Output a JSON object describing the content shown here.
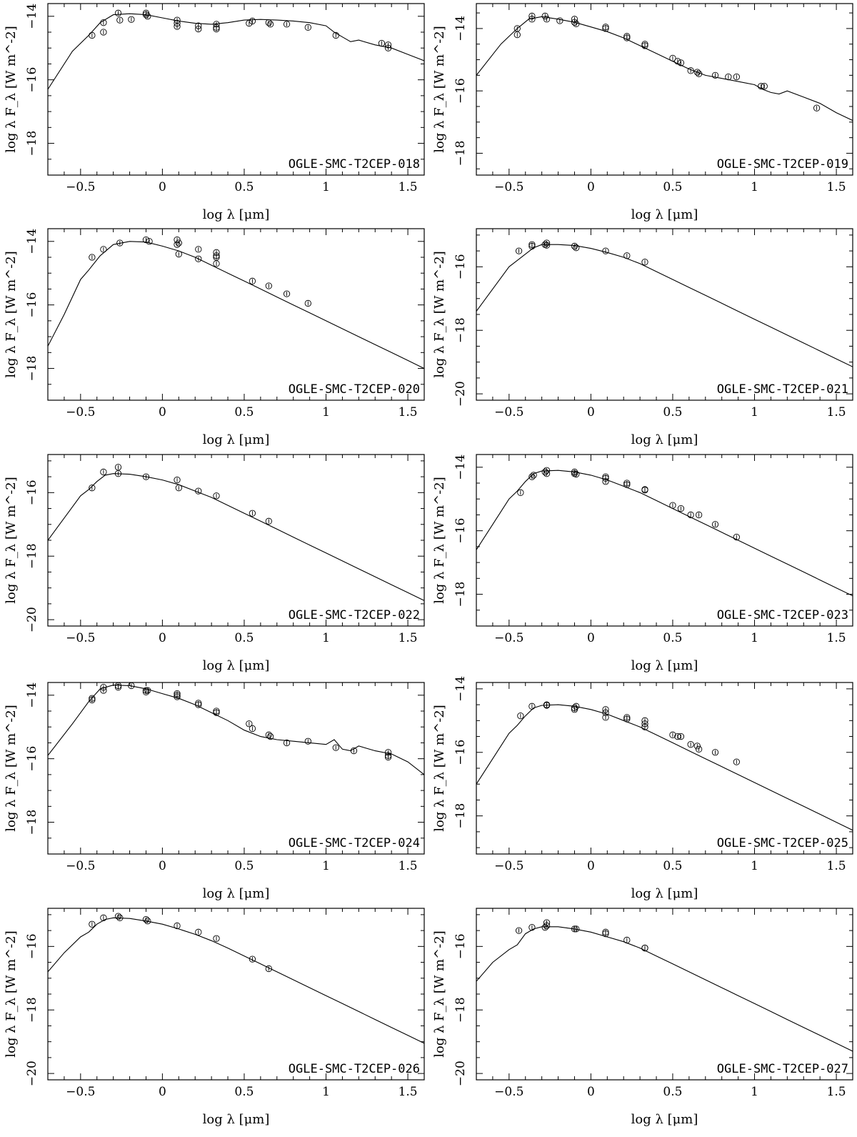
{
  "figure": {
    "x_axis_title": "log λ [μm]",
    "y_axis_title": "log λ F_λ [W m^-2]"
  },
  "chart_data": [
    {
      "type": "scatter",
      "label": "OGLE-SMC-T2CEP-018",
      "xlim": [
        -0.7,
        1.6
      ],
      "ylim": [
        -19,
        -13.6
      ],
      "xticks": [
        -0.5,
        0,
        0.5,
        1,
        1.5
      ],
      "yticks": [
        -14,
        -16,
        -18
      ],
      "model": {
        "x": [
          -0.7,
          -0.55,
          -0.45,
          -0.38,
          -0.3,
          -0.2,
          -0.1,
          0,
          0.1,
          0.2,
          0.3,
          0.4,
          0.5,
          0.6,
          0.7,
          0.8,
          0.9,
          1,
          1.05,
          1.1,
          1.15,
          1.2,
          1.3,
          1.4,
          1.5,
          1.6
        ],
        "y": [
          -16.3,
          -15.1,
          -14.6,
          -14.2,
          -13.95,
          -13.92,
          -13.95,
          -14.05,
          -14.15,
          -14.22,
          -14.25,
          -14.2,
          -14.12,
          -14.1,
          -14.12,
          -14.15,
          -14.2,
          -14.3,
          -14.5,
          -14.65,
          -14.8,
          -14.75,
          -14.9,
          -15,
          -15.2,
          -15.4
        ]
      },
      "points": {
        "x": [
          -0.43,
          -0.36,
          -0.36,
          -0.27,
          -0.26,
          -0.19,
          -0.1,
          -0.1,
          -0.09,
          0.09,
          0.09,
          0.09,
          0.22,
          0.22,
          0.33,
          0.33,
          0.33,
          0.53,
          0.55,
          0.65,
          0.66,
          0.76,
          0.89,
          1.06,
          1.34,
          1.38,
          1.38
        ],
        "y": [
          -14.6,
          -14.5,
          -14.2,
          -13.9,
          -14.12,
          -14.1,
          -13.95,
          -13.9,
          -14.0,
          -14.12,
          -14.22,
          -14.32,
          -14.3,
          -14.4,
          -14.25,
          -14.35,
          -14.4,
          -14.22,
          -14.15,
          -14.2,
          -14.25,
          -14.25,
          -14.35,
          -14.6,
          -14.85,
          -14.9,
          -15.0
        ]
      }
    },
    {
      "type": "scatter",
      "label": "OGLE-SMC-T2CEP-019",
      "xlim": [
        -0.7,
        1.6
      ],
      "ylim": [
        -18.7,
        -13.2
      ],
      "xticks": [
        -0.5,
        0,
        0.5,
        1,
        1.5
      ],
      "yticks": [
        -14,
        -16,
        -18
      ],
      "model": {
        "x": [
          -0.7,
          -0.55,
          -0.45,
          -0.38,
          -0.3,
          -0.2,
          -0.1,
          0,
          0.1,
          0.2,
          0.3,
          0.4,
          0.5,
          0.6,
          0.7,
          0.8,
          0.9,
          1,
          1.05,
          1.1,
          1.15,
          1.2,
          1.3,
          1.4,
          1.5,
          1.6
        ],
        "y": [
          -15.5,
          -14.5,
          -14.0,
          -13.7,
          -13.62,
          -13.7,
          -13.8,
          -13.95,
          -14.1,
          -14.3,
          -14.55,
          -14.8,
          -15.05,
          -15.3,
          -15.5,
          -15.6,
          -15.7,
          -15.8,
          -15.95,
          -16.05,
          -16.1,
          -16.0,
          -16.2,
          -16.4,
          -16.7,
          -16.95
        ]
      },
      "points": {
        "x": [
          -0.45,
          -0.45,
          -0.36,
          -0.36,
          -0.28,
          -0.27,
          -0.19,
          -0.1,
          -0.1,
          -0.09,
          0.09,
          0.09,
          0.22,
          0.22,
          0.33,
          0.33,
          0.5,
          0.53,
          0.55,
          0.61,
          0.65,
          0.66,
          0.76,
          0.84,
          0.89,
          1.04,
          1.06,
          1.38
        ],
        "y": [
          -14.0,
          -14.2,
          -13.6,
          -13.7,
          -13.6,
          -13.7,
          -13.75,
          -13.7,
          -13.8,
          -13.85,
          -13.95,
          -14.0,
          -14.25,
          -14.3,
          -14.5,
          -14.55,
          -14.95,
          -15.05,
          -15.1,
          -15.35,
          -15.4,
          -15.45,
          -15.5,
          -15.55,
          -15.55,
          -15.85,
          -15.85,
          -16.55
        ]
      }
    },
    {
      "type": "scatter",
      "label": "OGLE-SMC-T2CEP-020",
      "xlim": [
        -0.7,
        1.6
      ],
      "ylim": [
        -19,
        -13.6
      ],
      "xticks": [
        -0.5,
        0,
        0.5,
        1,
        1.5
      ],
      "yticks": [
        -14,
        -16,
        -18
      ],
      "model": {
        "x": [
          -0.7,
          -0.6,
          -0.5,
          -0.45,
          -0.38,
          -0.3,
          -0.2,
          -0.1,
          0,
          0.1,
          0.2,
          0.3,
          0.4,
          0.5,
          0.6,
          0.7,
          0.8,
          0.9,
          1,
          1.1,
          1.2,
          1.3,
          1.4,
          1.5,
          1.6
        ],
        "y": [
          -17.3,
          -16.3,
          -15.2,
          -14.9,
          -14.45,
          -14.1,
          -14.0,
          -14.02,
          -14.15,
          -14.3,
          -14.5,
          -14.75,
          -15.0,
          -15.25,
          -15.5,
          -15.75,
          -16.0,
          -16.25,
          -16.5,
          -16.75,
          -17.0,
          -17.25,
          -17.5,
          -17.75,
          -18.0
        ]
      },
      "points": {
        "x": [
          -0.43,
          -0.36,
          -0.26,
          -0.1,
          -0.08,
          0.09,
          0.09,
          0.1,
          0.1,
          0.22,
          0.22,
          0.33,
          0.33,
          0.33,
          0.33,
          0.55,
          0.65,
          0.76,
          0.89
        ],
        "y": [
          -14.5,
          -14.25,
          -14.05,
          -13.95,
          -14.0,
          -13.95,
          -14.1,
          -14.4,
          -14.05,
          -14.25,
          -14.55,
          -14.35,
          -14.45,
          -14.7,
          -14.5,
          -15.25,
          -15.4,
          -15.65,
          -15.95
        ]
      }
    },
    {
      "type": "scatter",
      "label": "OGLE-SMC-T2CEP-021",
      "xlim": [
        -0.7,
        1.6
      ],
      "ylim": [
        -20.2,
        -14.8
      ],
      "xticks": [
        -0.5,
        0,
        0.5,
        1,
        1.5
      ],
      "yticks": [
        -16,
        -18,
        -20
      ],
      "model": {
        "x": [
          -0.7,
          -0.6,
          -0.5,
          -0.45,
          -0.4,
          -0.35,
          -0.3,
          -0.2,
          -0.1,
          0,
          0.1,
          0.2,
          0.3,
          0.4,
          0.5,
          0.6,
          0.7,
          0.8,
          0.9,
          1,
          1.1,
          1.2,
          1.3,
          1.4,
          1.5,
          1.6
        ],
        "y": [
          -17.4,
          -16.7,
          -16.0,
          -15.8,
          -15.6,
          -15.4,
          -15.3,
          -15.3,
          -15.33,
          -15.42,
          -15.55,
          -15.7,
          -15.9,
          -16.15,
          -16.4,
          -16.65,
          -16.9,
          -17.15,
          -17.4,
          -17.65,
          -17.9,
          -18.15,
          -18.4,
          -18.65,
          -18.9,
          -19.15
        ]
      },
      "points": {
        "x": [
          -0.44,
          -0.36,
          -0.36,
          -0.28,
          -0.27,
          -0.27,
          -0.1,
          -0.09,
          0.09,
          0.22,
          0.33
        ],
        "y": [
          -15.5,
          -15.3,
          -15.35,
          -15.3,
          -15.25,
          -15.32,
          -15.35,
          -15.4,
          -15.5,
          -15.65,
          -15.85
        ]
      }
    },
    {
      "type": "scatter",
      "label": "OGLE-SMC-T2CEP-022",
      "xlim": [
        -0.7,
        1.6
      ],
      "ylim": [
        -20.2,
        -14.8
      ],
      "xticks": [
        -0.5,
        0,
        0.5,
        1,
        1.5
      ],
      "yticks": [
        -16,
        -18,
        -20
      ],
      "model": {
        "x": [
          -0.7,
          -0.6,
          -0.5,
          -0.45,
          -0.4,
          -0.35,
          -0.3,
          -0.2,
          -0.1,
          0,
          0.1,
          0.2,
          0.3,
          0.4,
          0.5,
          0.6,
          0.7,
          0.8,
          0.9,
          1,
          1.1,
          1.2,
          1.3,
          1.4,
          1.5,
          1.6
        ],
        "y": [
          -17.5,
          -16.8,
          -16.1,
          -15.9,
          -15.65,
          -15.45,
          -15.4,
          -15.42,
          -15.5,
          -15.6,
          -15.75,
          -15.95,
          -16.15,
          -16.4,
          -16.65,
          -16.9,
          -17.15,
          -17.4,
          -17.65,
          -17.9,
          -18.15,
          -18.4,
          -18.65,
          -18.9,
          -19.15,
          -19.4
        ]
      },
      "points": {
        "x": [
          -0.43,
          -0.36,
          -0.27,
          -0.27,
          -0.1,
          0.09,
          0.1,
          0.22,
          0.33,
          0.55,
          0.65
        ],
        "y": [
          -15.85,
          -15.35,
          -15.2,
          -15.4,
          -15.5,
          -15.6,
          -15.85,
          -15.95,
          -16.1,
          -16.65,
          -16.9
        ]
      }
    },
    {
      "type": "scatter",
      "label": "OGLE-SMC-T2CEP-023",
      "xlim": [
        -0.7,
        1.6
      ],
      "ylim": [
        -19,
        -13.6
      ],
      "xticks": [
        -0.5,
        0,
        0.5,
        1,
        1.5
      ],
      "yticks": [
        -14,
        -16,
        -18
      ],
      "model": {
        "x": [
          -0.7,
          -0.6,
          -0.5,
          -0.45,
          -0.4,
          -0.35,
          -0.3,
          -0.2,
          -0.1,
          0,
          0.1,
          0.2,
          0.3,
          0.4,
          0.5,
          0.6,
          0.7,
          0.8,
          0.9,
          1,
          1.1,
          1.2,
          1.3,
          1.4,
          1.5,
          1.6
        ],
        "y": [
          -16.6,
          -15.8,
          -15.0,
          -14.75,
          -14.45,
          -14.2,
          -14.12,
          -14.1,
          -14.15,
          -14.25,
          -14.4,
          -14.6,
          -14.8,
          -15.05,
          -15.3,
          -15.55,
          -15.8,
          -16.05,
          -16.3,
          -16.55,
          -16.8,
          -17.05,
          -17.3,
          -17.55,
          -17.8,
          -18.05
        ]
      },
      "points": {
        "x": [
          -0.43,
          -0.36,
          -0.35,
          -0.28,
          -0.27,
          -0.27,
          -0.1,
          -0.1,
          -0.09,
          0.09,
          0.09,
          0.09,
          0.22,
          0.22,
          0.33,
          0.33,
          0.5,
          0.55,
          0.61,
          0.66,
          0.76,
          0.89
        ],
        "y": [
          -14.8,
          -14.3,
          -14.25,
          -14.15,
          -14.2,
          -14.1,
          -14.2,
          -14.15,
          -14.22,
          -14.3,
          -14.35,
          -14.45,
          -14.5,
          -14.55,
          -14.7,
          -14.72,
          -15.2,
          -15.3,
          -15.5,
          -15.5,
          -15.8,
          -16.2
        ]
      }
    },
    {
      "type": "scatter",
      "label": "OGLE-SMC-T2CEP-024",
      "xlim": [
        -0.7,
        1.6
      ],
      "ylim": [
        -19,
        -13.6
      ],
      "xticks": [
        -0.5,
        0,
        0.5,
        1,
        1.5
      ],
      "yticks": [
        -14,
        -16,
        -18
      ],
      "model": {
        "x": [
          -0.7,
          -0.55,
          -0.45,
          -0.38,
          -0.3,
          -0.2,
          -0.1,
          0,
          0.1,
          0.2,
          0.3,
          0.4,
          0.5,
          0.6,
          0.7,
          0.8,
          0.9,
          1,
          1.05,
          1.1,
          1.15,
          1.2,
          1.3,
          1.4,
          1.5,
          1.6
        ],
        "y": [
          -15.9,
          -14.9,
          -14.2,
          -13.8,
          -13.68,
          -13.7,
          -13.8,
          -13.95,
          -14.1,
          -14.3,
          -14.55,
          -14.8,
          -15.1,
          -15.3,
          -15.4,
          -15.45,
          -15.5,
          -15.55,
          -15.4,
          -15.7,
          -15.75,
          -15.6,
          -15.75,
          -15.85,
          -16.1,
          -16.5
        ]
      },
      "points": {
        "x": [
          -0.43,
          -0.43,
          -0.36,
          -0.36,
          -0.27,
          -0.27,
          -0.19,
          -0.1,
          -0.1,
          -0.09,
          0.09,
          0.09,
          0.09,
          0.22,
          0.22,
          0.33,
          0.33,
          0.53,
          0.55,
          0.65,
          0.66,
          0.76,
          0.89,
          1.06,
          1.17,
          1.38,
          1.38,
          1.38
        ],
        "y": [
          -14.1,
          -14.15,
          -13.75,
          -13.85,
          -13.7,
          -13.75,
          -13.7,
          -13.85,
          -13.9,
          -13.85,
          -13.95,
          -14.05,
          -14.0,
          -14.25,
          -14.3,
          -14.5,
          -14.55,
          -14.9,
          -15.05,
          -15.25,
          -15.3,
          -15.5,
          -15.45,
          -15.65,
          -15.75,
          -15.8,
          -15.9,
          -15.95
        ]
      }
    },
    {
      "type": "scatter",
      "label": "OGLE-SMC-T2CEP-025",
      "xlim": [
        -0.7,
        1.6
      ],
      "ylim": [
        -19.2,
        -13.8
      ],
      "xticks": [
        -0.5,
        0,
        0.5,
        1,
        1.5
      ],
      "yticks": [
        -14,
        -16,
        -18
      ],
      "model": {
        "x": [
          -0.7,
          -0.6,
          -0.5,
          -0.45,
          -0.4,
          -0.35,
          -0.3,
          -0.2,
          -0.1,
          0,
          0.1,
          0.2,
          0.3,
          0.4,
          0.5,
          0.6,
          0.7,
          0.8,
          0.9,
          1,
          1.1,
          1.2,
          1.3,
          1.4,
          1.5,
          1.6
        ],
        "y": [
          -17.0,
          -16.2,
          -15.4,
          -15.15,
          -14.85,
          -14.6,
          -14.52,
          -14.5,
          -14.55,
          -14.65,
          -14.8,
          -15.0,
          -15.2,
          -15.45,
          -15.7,
          -15.95,
          -16.2,
          -16.45,
          -16.7,
          -16.95,
          -17.2,
          -17.45,
          -17.7,
          -17.95,
          -18.2,
          -18.45
        ]
      },
      "points": {
        "x": [
          -0.43,
          -0.36,
          -0.27,
          -0.27,
          -0.1,
          -0.1,
          -0.09,
          0.09,
          0.09,
          0.09,
          0.22,
          0.22,
          0.33,
          0.33,
          0.33,
          0.5,
          0.53,
          0.55,
          0.61,
          0.65,
          0.66,
          0.76,
          0.89
        ],
        "y": [
          -14.85,
          -14.55,
          -14.5,
          -14.52,
          -14.6,
          -14.65,
          -14.55,
          -14.65,
          -14.75,
          -14.9,
          -14.9,
          -14.95,
          -15.0,
          -15.1,
          -15.2,
          -15.45,
          -15.5,
          -15.5,
          -15.75,
          -15.8,
          -15.9,
          -16.0,
          -16.3
        ]
      }
    },
    {
      "type": "scatter",
      "label": "OGLE-SMC-T2CEP-026",
      "xlim": [
        -0.7,
        1.6
      ],
      "ylim": [
        -20.2,
        -14.8
      ],
      "xticks": [
        -0.5,
        0,
        0.5,
        1,
        1.5
      ],
      "yticks": [
        -16,
        -18,
        -20
      ],
      "model": {
        "x": [
          -0.7,
          -0.6,
          -0.5,
          -0.45,
          -0.4,
          -0.35,
          -0.3,
          -0.2,
          -0.1,
          0,
          0.1,
          0.2,
          0.3,
          0.4,
          0.5,
          0.6,
          0.7,
          0.8,
          0.9,
          1,
          1.1,
          1.2,
          1.3,
          1.4,
          1.5,
          1.6
        ],
        "y": [
          -16.8,
          -16.2,
          -15.7,
          -15.55,
          -15.3,
          -15.15,
          -15.1,
          -15.12,
          -15.2,
          -15.3,
          -15.45,
          -15.62,
          -15.82,
          -16.05,
          -16.3,
          -16.55,
          -16.8,
          -17.05,
          -17.3,
          -17.55,
          -17.8,
          -18.05,
          -18.3,
          -18.55,
          -18.8,
          -19.05
        ]
      },
      "points": {
        "x": [
          -0.43,
          -0.36,
          -0.27,
          -0.26,
          -0.1,
          -0.09,
          0.09,
          0.22,
          0.33,
          0.55,
          0.65
        ],
        "y": [
          -15.3,
          -15.1,
          -15.05,
          -15.1,
          -15.15,
          -15.2,
          -15.35,
          -15.55,
          -15.75,
          -16.4,
          -16.7
        ]
      }
    },
    {
      "type": "scatter",
      "label": "OGLE-SMC-T2CEP-027",
      "xlim": [
        -0.7,
        1.6
      ],
      "ylim": [
        -20.2,
        -14.8
      ],
      "xticks": [
        -0.5,
        0,
        0.5,
        1,
        1.5
      ],
      "yticks": [
        -16,
        -18,
        -20
      ],
      "model": {
        "x": [
          -0.7,
          -0.6,
          -0.5,
          -0.45,
          -0.4,
          -0.35,
          -0.3,
          -0.2,
          -0.1,
          0,
          0.1,
          0.2,
          0.3,
          0.4,
          0.5,
          0.6,
          0.7,
          0.8,
          0.9,
          1,
          1.1,
          1.2,
          1.3,
          1.4,
          1.5,
          1.6
        ],
        "y": [
          -17.1,
          -16.5,
          -16.1,
          -15.95,
          -15.6,
          -15.45,
          -15.38,
          -15.38,
          -15.45,
          -15.55,
          -15.7,
          -15.85,
          -16.05,
          -16.3,
          -16.55,
          -16.8,
          -17.05,
          -17.3,
          -17.55,
          -17.8,
          -18.05,
          -18.3,
          -18.55,
          -18.8,
          -19.05,
          -19.3
        ]
      },
      "points": {
        "x": [
          -0.44,
          -0.36,
          -0.28,
          -0.27,
          -0.27,
          -0.1,
          -0.09,
          0.09,
          0.09,
          0.22,
          0.33,
          0.33
        ],
        "y": [
          -15.5,
          -15.4,
          -15.4,
          -15.25,
          -15.35,
          -15.45,
          -15.45,
          -15.55,
          -15.6,
          -15.8,
          -16.05,
          -16.05
        ]
      }
    }
  ]
}
